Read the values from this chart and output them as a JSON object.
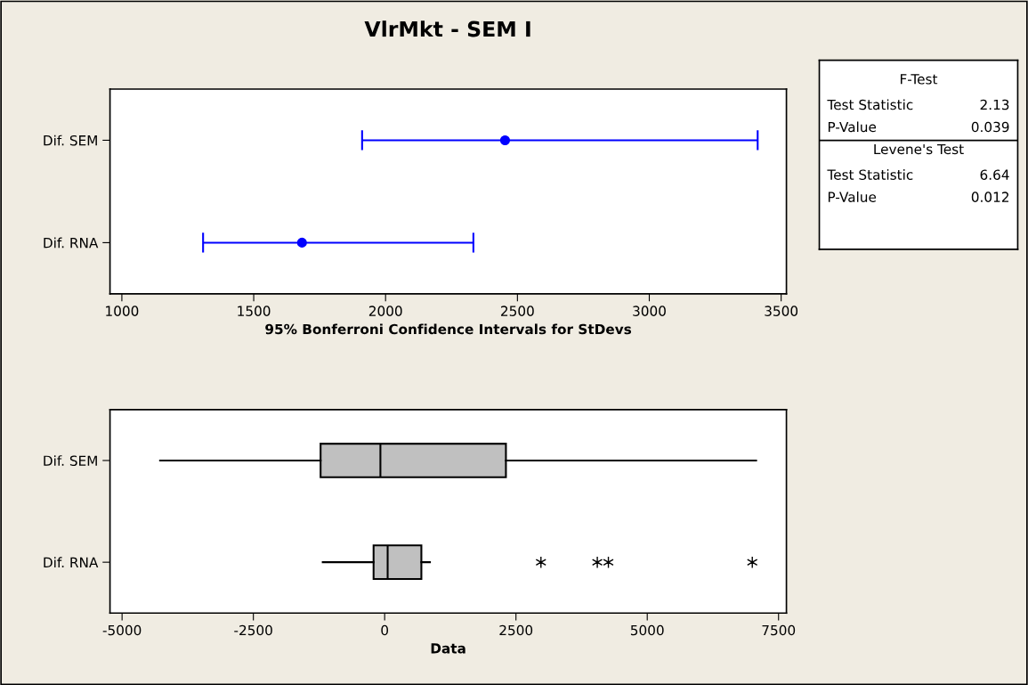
{
  "chart_data": [
    {
      "type": "scatter",
      "orientation": "horizontal",
      "title": "VlrMkt - SEM I",
      "xlabel": "95% Bonferroni Confidence Intervals for StDevs",
      "categories": [
        "Dif. SEM",
        "Dif. RNA"
      ],
      "values": [
        2453,
        1683
      ],
      "errors": [
        [
          1911,
          3411
        ],
        [
          1308,
          2333
        ]
      ],
      "color": "#0000ff",
      "marker": "circle",
      "xlim": [
        955,
        3520
      ],
      "xticks": [
        1000,
        1500,
        2000,
        2500,
        3000,
        3500
      ],
      "grid": false
    },
    {
      "type": "box",
      "orientation": "horizontal",
      "xlabel": "Data",
      "categories": [
        "Dif. SEM",
        "Dif. RNA"
      ],
      "boxes": [
        {
          "low": -4276,
          "q1": -1220,
          "median": -81,
          "q3": 2309,
          "high": 7073
        },
        {
          "low": -1179,
          "q1": -211,
          "median": 57,
          "q3": 699,
          "high": 862,
          "outliers": [
            2976,
            4049,
            4260,
            7000
          ]
        }
      ],
      "color": "#c0c0c0",
      "xlim": [
        -5230,
        7650
      ],
      "xticks": [
        -5000,
        -2500,
        0,
        2500,
        5000,
        7500
      ],
      "grid": false
    },
    {
      "type": "other",
      "annotations": [
        "F-Test",
        "Test Statistic",
        "2.13",
        "P-Value",
        "0.039",
        "Levene's Test",
        "Test Statistic",
        "6.64",
        "P-Value",
        "0.012"
      ]
    }
  ]
}
